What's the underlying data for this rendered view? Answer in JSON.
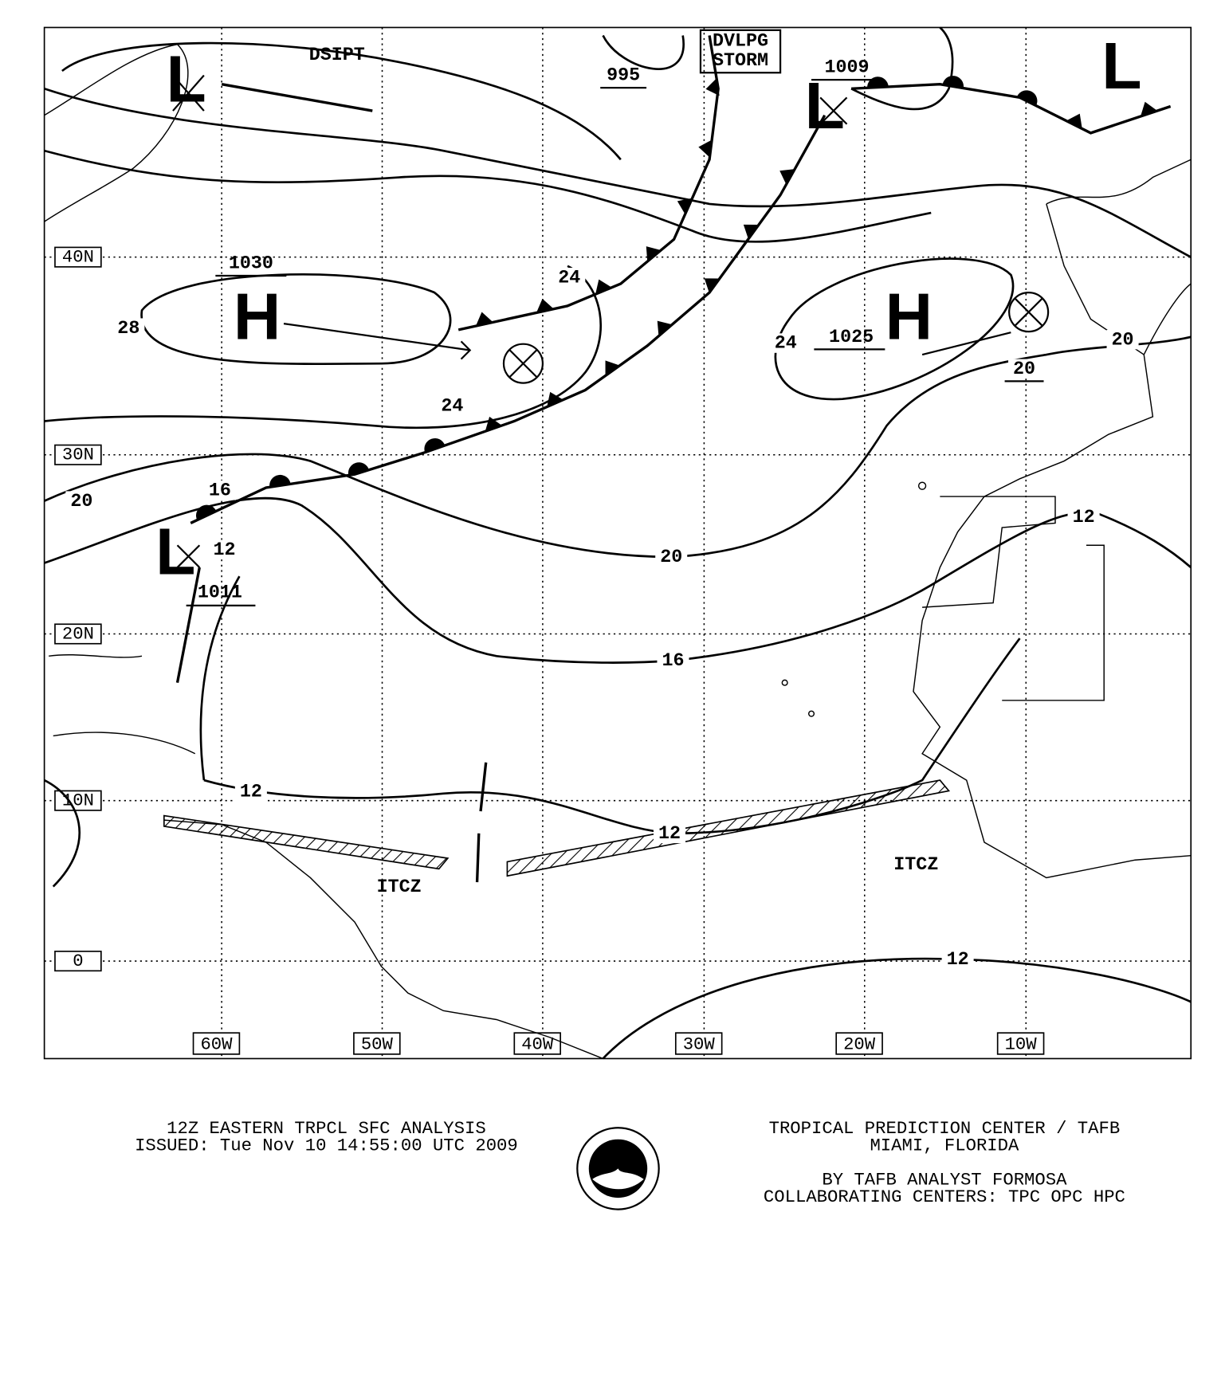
{
  "map": {
    "latitude_labels": [
      "40N",
      "30N",
      "20N",
      "10N",
      "0"
    ],
    "longitude_labels": [
      "60W",
      "50W",
      "40W",
      "30W",
      "20W",
      "10W"
    ],
    "pressure_centers": [
      {
        "symbol": "L"
      },
      {
        "symbol": "L",
        "pressure": 1009
      },
      {
        "symbol": "L"
      },
      {
        "symbol": "H",
        "pressure": 1030
      },
      {
        "symbol": "H",
        "pressure": 1025
      },
      {
        "symbol": "L",
        "pressure": 1011
      }
    ],
    "other_pressure": 995,
    "isobar_labels": [
      28,
      24,
      24,
      24,
      20,
      20,
      20,
      16,
      12,
      20,
      16,
      12,
      12,
      12,
      12
    ],
    "annotations": [
      "DSIPT",
      "DVLPG",
      "STORM",
      "ITCZ",
      "ITCZ"
    ]
  },
  "footer": {
    "title": "12Z EASTERN TRPCL SFC ANALYSIS",
    "issued": "ISSUED:  Tue Nov 10 14:55:00 UTC 2009",
    "center": "TROPICAL PREDICTION CENTER / TAFB",
    "location": "MIAMI,  FLORIDA",
    "analyst": "BY TAFB ANALYST  FORMOSA",
    "collaborating": "COLLABORATING CENTERS:  TPC OPC HPC"
  }
}
